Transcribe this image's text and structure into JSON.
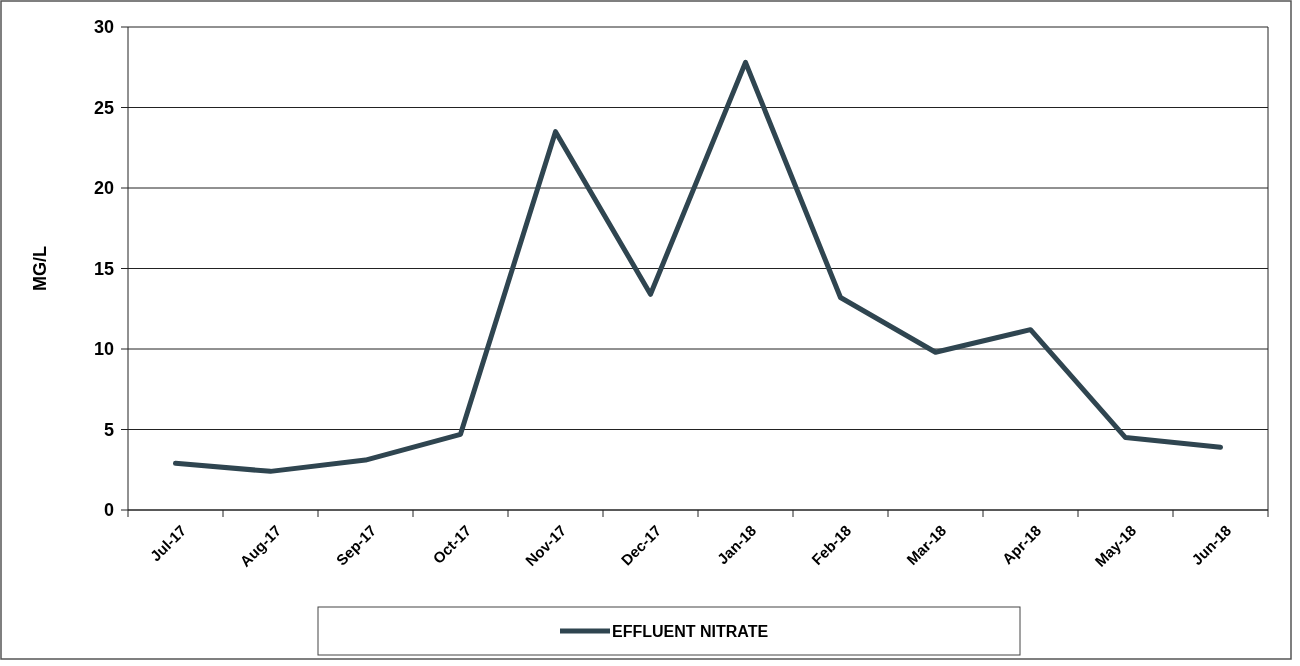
{
  "chart_data": {
    "type": "line",
    "ylabel": "MG/L",
    "categories": [
      "Jul-17",
      "Aug-17",
      "Sep-17",
      "Oct-17",
      "Nov-17",
      "Dec-17",
      "Jan-18",
      "Feb-18",
      "Mar-18",
      "Apr-18",
      "May-18",
      "Jun-18"
    ],
    "series": [
      {
        "name": "EFFLUENT NITRATE",
        "color": "#2f4550",
        "values": [
          2.9,
          2.4,
          3.1,
          4.7,
          23.5,
          13.4,
          27.8,
          13.2,
          9.8,
          11.2,
          4.5,
          3.9
        ]
      }
    ],
    "ylim": [
      0,
      30
    ],
    "yticks": [
      0,
      5,
      10,
      15,
      20,
      25,
      30
    ],
    "grid": "y",
    "legend": "bottom",
    "marker": "none",
    "line_style": "solid"
  }
}
